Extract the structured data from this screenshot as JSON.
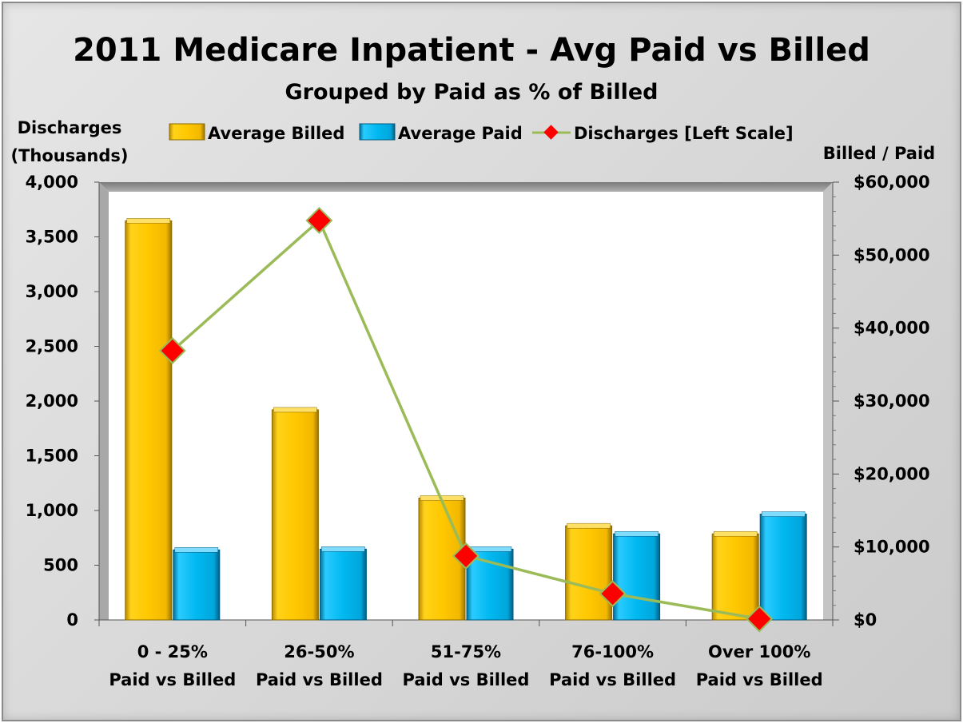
{
  "chart_data": {
    "type": "bar",
    "title": "2011 Medicare Inpatient - Avg Paid vs Billed",
    "subtitle": "Grouped by Paid as % of Billed",
    "y_left_label_line1": "Discharges",
    "y_left_label_line2": "(Thousands)",
    "y_right_label": "Billed  / Paid",
    "categories": [
      {
        "line1": "0 - 25%",
        "line2": "Paid vs Billed"
      },
      {
        "line1": "26-50%",
        "line2": "Paid vs Billed"
      },
      {
        "line1": "51-75%",
        "line2": "Paid vs Billed"
      },
      {
        "line1": "76-100%",
        "line2": "Paid vs Billed"
      },
      {
        "line1": "Over 100%",
        "line2": "Paid vs Billed"
      }
    ],
    "y_left_ticks": [
      "0",
      "500",
      "1,000",
      "1,500",
      "2,000",
      "2,500",
      "3,000",
      "3,500",
      "4,000"
    ],
    "y_right_ticks": [
      "$0",
      "$10,000",
      "$20,000",
      "$30,000",
      "$40,000",
      "$50,000",
      "$60,000"
    ],
    "ylim_left": [
      0,
      4000
    ],
    "ylim_right": [
      0,
      60000
    ],
    "series": [
      {
        "name": "Average Billed",
        "axis": "right",
        "kind": "bar",
        "color": "#FFC800",
        "values": [
          54700,
          28800,
          16700,
          12900,
          11800
        ]
      },
      {
        "name": "Average Paid",
        "axis": "right",
        "kind": "bar",
        "color": "#00B8F0",
        "values": [
          9600,
          9700,
          9700,
          11800,
          14500
        ]
      },
      {
        "name": "Discharges [Left Scale]",
        "axis": "left",
        "kind": "line",
        "color": "#9BBB59",
        "marker_color": "#FF0000",
        "values": [
          2460,
          3650,
          585,
          240,
          10
        ]
      }
    ],
    "legend_position": "top",
    "grid": false
  }
}
